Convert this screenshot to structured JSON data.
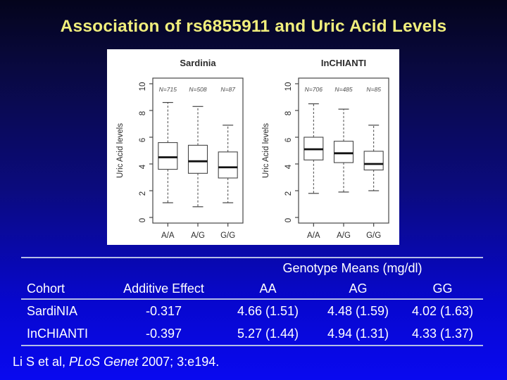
{
  "title": "Association of rs6855911 and Uric Acid Levels",
  "colors": {
    "title": "#f0ee7c",
    "bg_top": "#04041c",
    "bg_bottom": "#0909f0",
    "table_rule": "#b4bce6",
    "panel_bg": "#ffffff",
    "plot_ink": "#454545",
    "plot_text": "#2b2b2b",
    "median_ink": "#111111",
    "text": "#ffffff"
  },
  "chart_data": [
    {
      "type": "boxplot",
      "title": "Sardinia",
      "xlabel": "",
      "ylabel": "Uric Acid levels",
      "ylim": [
        0,
        10
      ],
      "yticks": [
        0,
        2,
        4,
        6,
        8,
        10
      ],
      "categories": [
        "A/A",
        "A/G",
        "G/G"
      ],
      "n_labels": [
        "N=715",
        "N=508",
        "N=87"
      ],
      "boxes": [
        {
          "low": 1.1,
          "q1": 3.6,
          "median": 4.5,
          "q3": 5.6,
          "high": 8.6
        },
        {
          "low": 0.8,
          "q1": 3.3,
          "median": 4.2,
          "q3": 5.4,
          "high": 8.3
        },
        {
          "low": 1.1,
          "q1": 2.95,
          "median": 3.75,
          "q3": 4.9,
          "high": 6.9
        }
      ]
    },
    {
      "type": "boxplot",
      "title": "InCHIANTI",
      "xlabel": "",
      "ylabel": "Uric Acid levels",
      "ylim": [
        0,
        10
      ],
      "yticks": [
        0,
        2,
        4,
        6,
        8,
        10
      ],
      "categories": [
        "A/A",
        "A/G",
        "G/G"
      ],
      "n_labels": [
        "N=706",
        "N=485",
        "N=85"
      ],
      "boxes": [
        {
          "low": 1.8,
          "q1": 4.3,
          "median": 5.1,
          "q3": 6.0,
          "high": 8.5
        },
        {
          "low": 1.9,
          "q1": 4.1,
          "median": 4.8,
          "q3": 5.7,
          "high": 8.1
        },
        {
          "low": 2.0,
          "q1": 3.55,
          "median": 4.0,
          "q3": 4.95,
          "high": 6.9
        }
      ]
    }
  ],
  "table": {
    "span_header": "Genotype Means (mg/dl)",
    "columns": [
      "Cohort",
      "Additive Effect",
      "AA",
      "AG",
      "GG"
    ],
    "rows": [
      [
        "SardiNIA",
        "-0.317",
        "4.66 (1.51)",
        "4.48 (1.59)",
        "4.02 (1.63)"
      ],
      [
        "InCHIANTI",
        "-0.397",
        "5.27 (1.44)",
        "4.94 (1.31)",
        "4.33 (1.37)"
      ]
    ]
  },
  "citation": {
    "prefix": "Li S et al, ",
    "journal": "PLoS Genet",
    "suffix": " 2007; 3:e194."
  }
}
